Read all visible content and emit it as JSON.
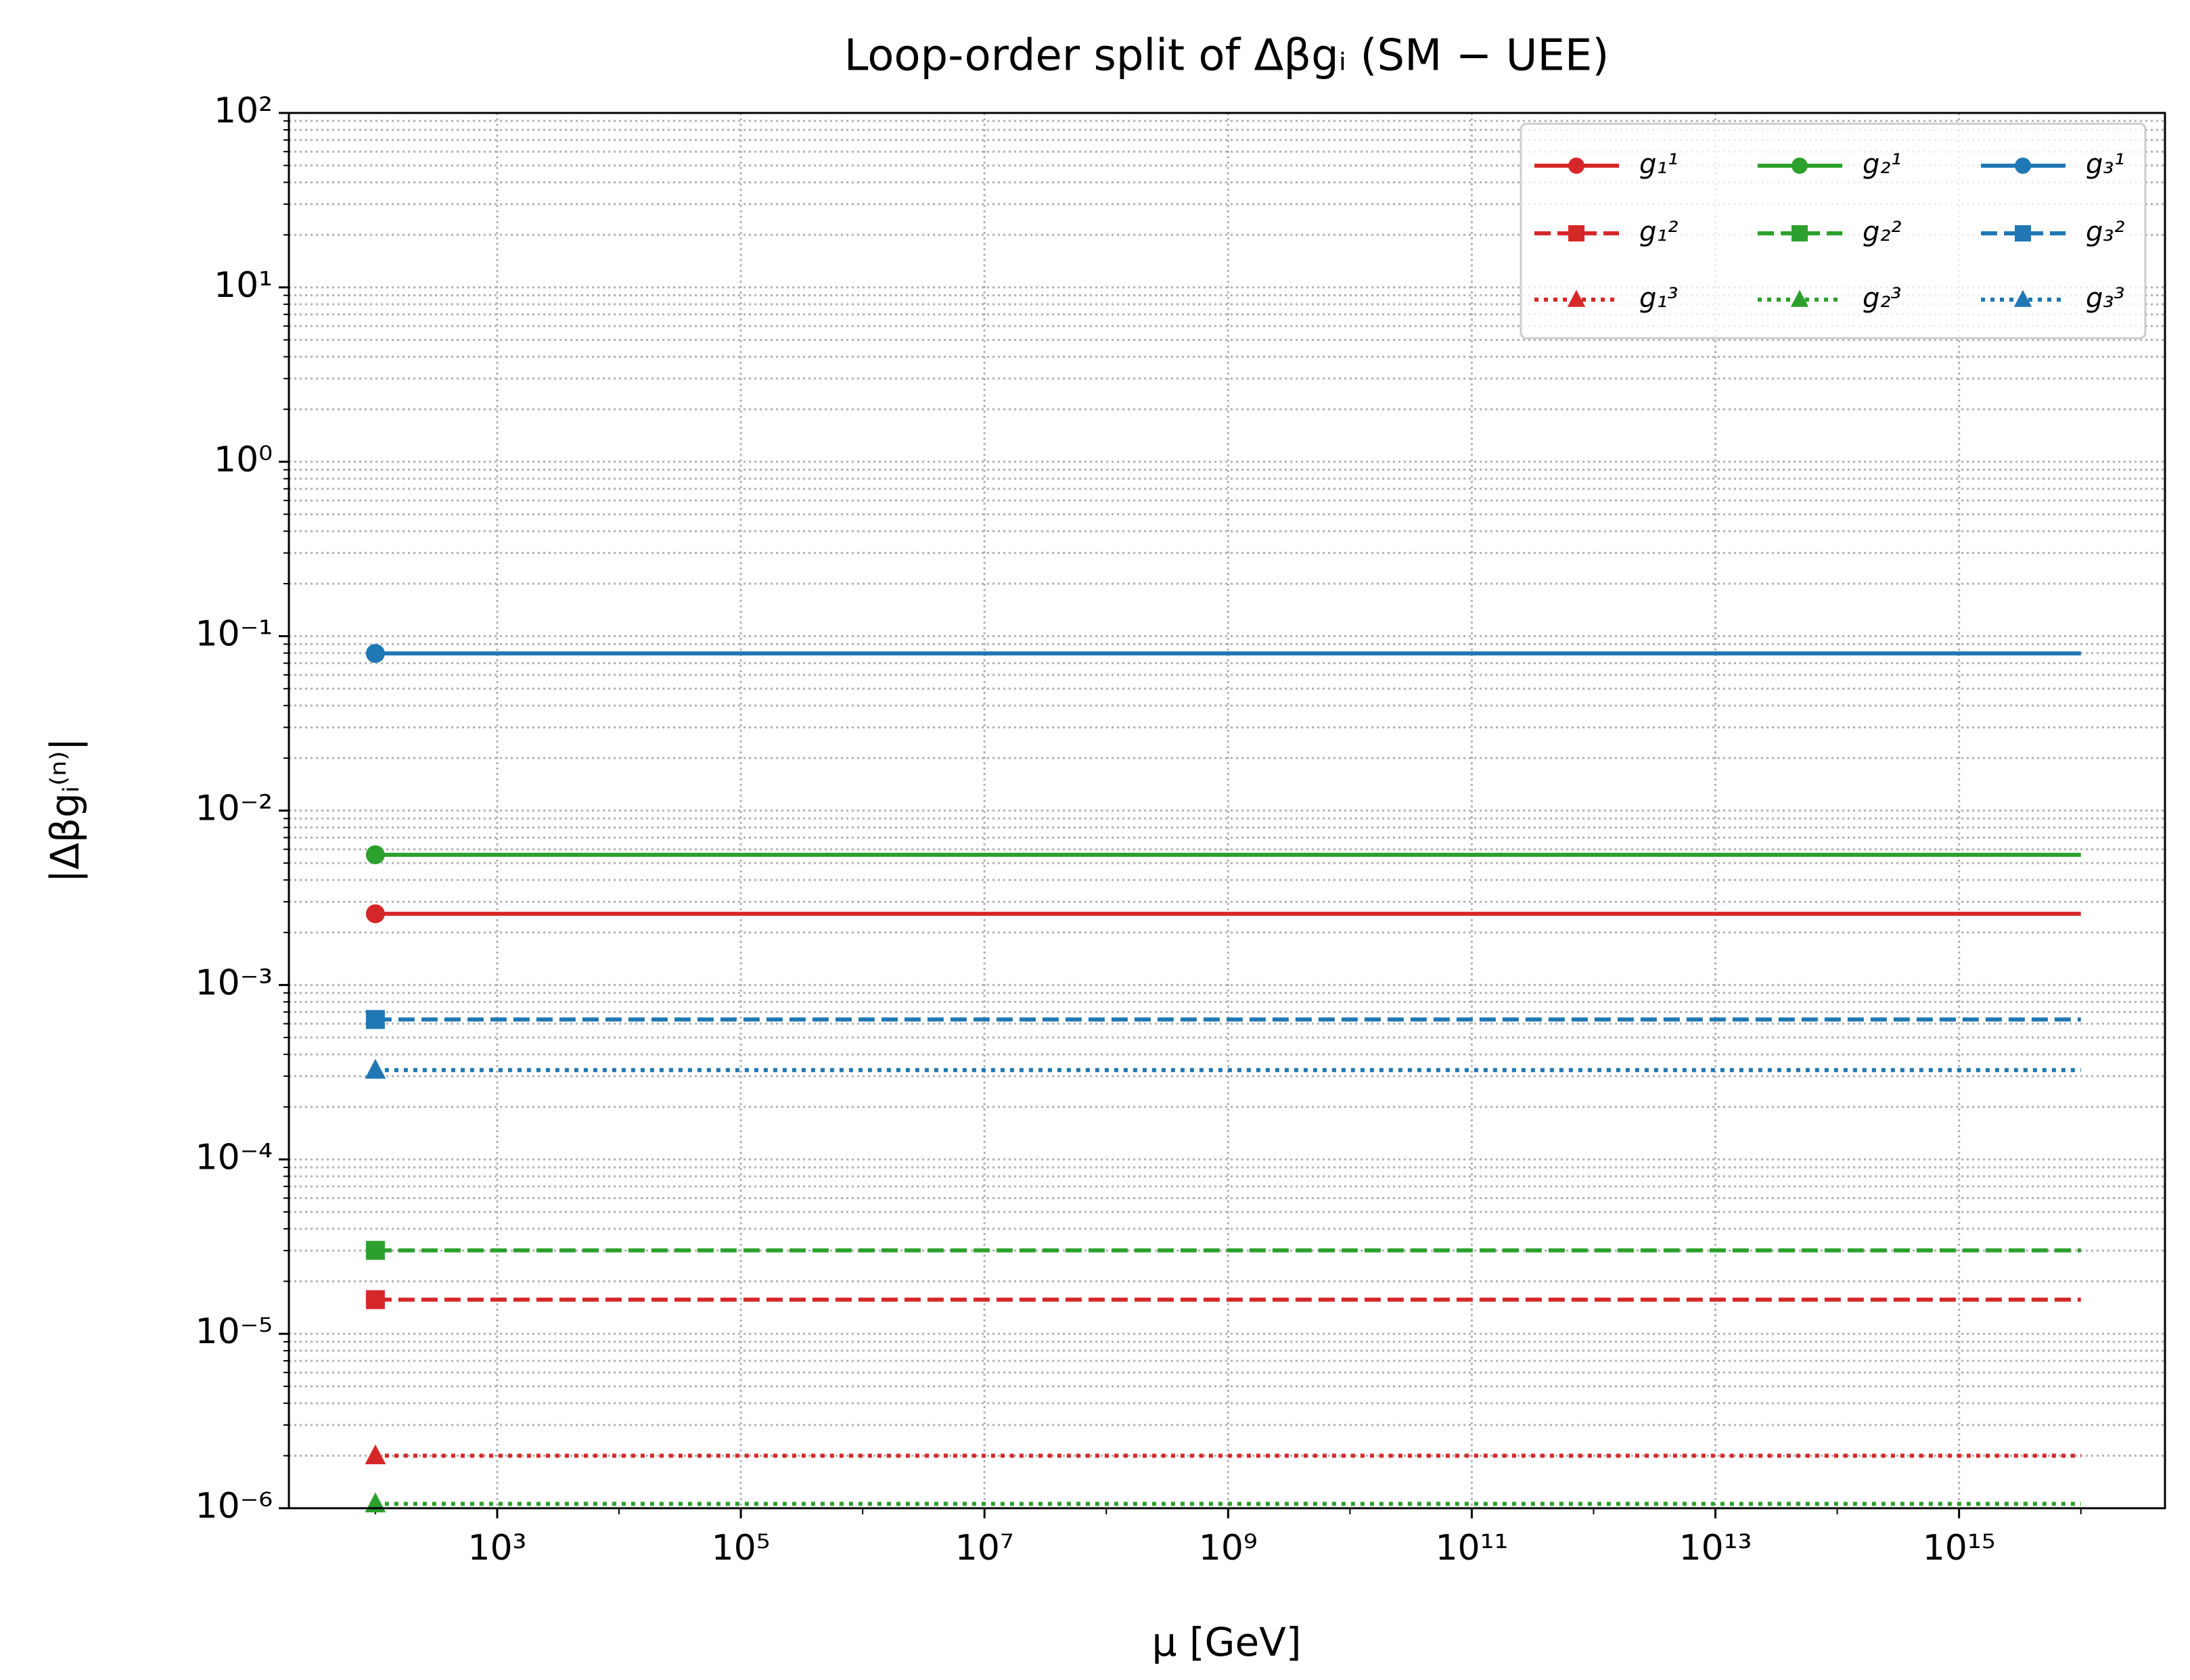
{
  "chart_data": {
    "type": "line",
    "title": "Loop-order split of Δβgᵢ  (SM − UEE)",
    "x_label": "μ [GeV]",
    "y_label": "|Δβgᵢ⁽ⁿ⁾|",
    "x": [
      100,
      10000000000000000
    ],
    "x_scale": "log",
    "y_scale": "log",
    "xlim": [
      19.5,
      49000000000000000
    ],
    "ylim": [
      1e-06,
      100
    ],
    "xticks": [
      {
        "value": 1000,
        "label": "10³"
      },
      {
        "value": 100000,
        "label": "10⁵"
      },
      {
        "value": 10000000,
        "label": "10⁷"
      },
      {
        "value": 1000000000,
        "label": "10⁹"
      },
      {
        "value": 100000000000,
        "label": "10¹¹"
      },
      {
        "value": 10000000000000,
        "label": "10¹³"
      },
      {
        "value": 1000000000000000,
        "label": "10¹⁵"
      }
    ],
    "yticks": [
      {
        "value": 1e-06,
        "label": "10⁻⁶"
      },
      {
        "value": 1e-05,
        "label": "10⁻⁵"
      },
      {
        "value": 0.0001,
        "label": "10⁻⁴"
      },
      {
        "value": 0.001,
        "label": "10⁻³"
      },
      {
        "value": 0.01,
        "label": "10⁻²"
      },
      {
        "value": 0.1,
        "label": "10⁻¹"
      },
      {
        "value": 1,
        "label": "10⁰"
      },
      {
        "value": 10,
        "label": "10¹"
      },
      {
        "value": 100,
        "label": "10²"
      }
    ],
    "grid": true,
    "legend": "upper right",
    "series": [
      {
        "name": "g₁¹",
        "color": "#d62728",
        "linestyle": "solid",
        "marker": "circle",
        "values": [
          0.00256,
          0.00256
        ]
      },
      {
        "name": "g₁²",
        "color": "#d62728",
        "linestyle": "dashed",
        "marker": "square",
        "values": [
          1.57e-05,
          1.57e-05
        ]
      },
      {
        "name": "g₁³",
        "color": "#d62728",
        "linestyle": "dotted",
        "marker": "triangle",
        "values": [
          2e-06,
          2e-06
        ]
      },
      {
        "name": "g₂¹",
        "color": "#2ca02c",
        "linestyle": "solid",
        "marker": "circle",
        "values": [
          0.00558,
          0.00558
        ]
      },
      {
        "name": "g₂²",
        "color": "#2ca02c",
        "linestyle": "dashed",
        "marker": "square",
        "values": [
          3.01e-05,
          3.01e-05
        ]
      },
      {
        "name": "g₂³",
        "color": "#2ca02c",
        "linestyle": "dotted",
        "marker": "triangle",
        "values": [
          1.06e-06,
          1.06e-06
        ]
      },
      {
        "name": "g₃¹",
        "color": "#1f77b4",
        "linestyle": "solid",
        "marker": "circle",
        "values": [
          0.0796,
          0.0796
        ]
      },
      {
        "name": "g₃²",
        "color": "#1f77b4",
        "linestyle": "dashed",
        "marker": "square",
        "values": [
          0.000634,
          0.000634
        ]
      },
      {
        "name": "g₃³",
        "color": "#1f77b4",
        "linestyle": "dotted",
        "marker": "triangle",
        "values": [
          0.000325,
          0.000325
        ]
      }
    ]
  }
}
